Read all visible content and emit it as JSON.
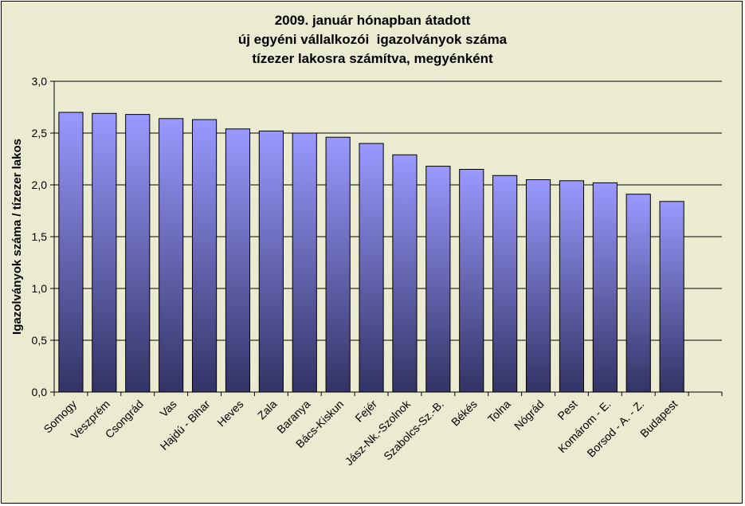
{
  "chart_data": {
    "type": "bar",
    "title_lines": [
      "2009. január hónapban átadott",
      "új egyéni vállalkozói  igazolványok száma",
      "tízezer lakosra számítva, megyénként"
    ],
    "xlabel": "",
    "ylabel": "Igazolványok száma / tízezer lakos",
    "ylim": [
      0,
      3.0
    ],
    "yticks": [
      "0,0",
      "0,5",
      "1,0",
      "1,5",
      "2,0",
      "2,5",
      "3,0"
    ],
    "ytick_values": [
      0,
      0.5,
      1.0,
      1.5,
      2.0,
      2.5,
      3.0
    ],
    "grid": true,
    "legend": "none",
    "categories": [
      "Somogy",
      "Veszprém",
      "Csongrád",
      "Vas",
      "Hajdú - Bihar",
      "Heves",
      "Zala",
      "Baranya",
      "Bács-Kiskun",
      "Fejér",
      "Jász-Nk.-Szolnok",
      "Szabolcs-Sz.-B.",
      "Békés",
      "Tolna",
      "Nógrád",
      "Pest",
      "Komárom - E.",
      "Borsod - A. - Z.",
      "Budapest"
    ],
    "values": [
      2.7,
      2.69,
      2.68,
      2.64,
      2.63,
      2.54,
      2.52,
      2.5,
      2.46,
      2.4,
      2.29,
      2.18,
      2.15,
      2.09,
      2.05,
      2.04,
      2.02,
      1.91,
      1.84
    ],
    "colors": {
      "bar_top": "#9999ff",
      "bar_bottom": "#333366",
      "plot_background": "#ebebd2",
      "gridline": "#000000"
    }
  }
}
